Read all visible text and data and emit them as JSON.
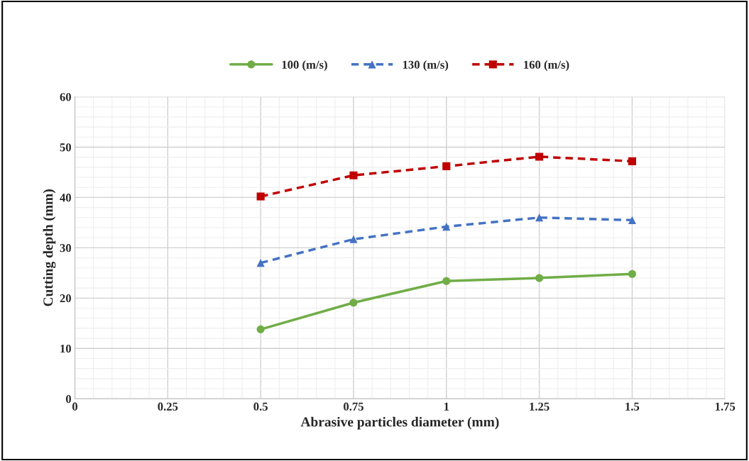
{
  "chart_data": {
    "type": "line",
    "xlabel": "Abrasive particles diameter (mm)",
    "ylabel": "Cutting depth (mm)",
    "x": [
      0.5,
      0.75,
      1,
      1.25,
      1.5
    ],
    "series": [
      {
        "name": "100 (m/s)",
        "color": "#70ad47",
        "marker": "circle",
        "line_style": "solid",
        "values": [
          13.8,
          19.1,
          23.4,
          24.0,
          24.8
        ]
      },
      {
        "name": "130 (m/s)",
        "color": "#4472c4",
        "marker": "triangle",
        "line_style": "dashed",
        "values": [
          27.0,
          31.7,
          34.2,
          36.0,
          35.5
        ]
      },
      {
        "name": "160 (m/s)",
        "color": "#c00000",
        "marker": "square",
        "line_style": "dashed",
        "values": [
          40.2,
          44.4,
          46.2,
          48.1,
          47.2
        ]
      }
    ],
    "xlim": [
      0,
      1.75
    ],
    "xticks": [
      0,
      0.25,
      0.5,
      0.75,
      1,
      1.25,
      1.5,
      1.75
    ],
    "ylim": [
      0,
      60
    ],
    "yticks": [
      0,
      10,
      20,
      30,
      40,
      50,
      60
    ],
    "grid": true,
    "legend": "top"
  }
}
